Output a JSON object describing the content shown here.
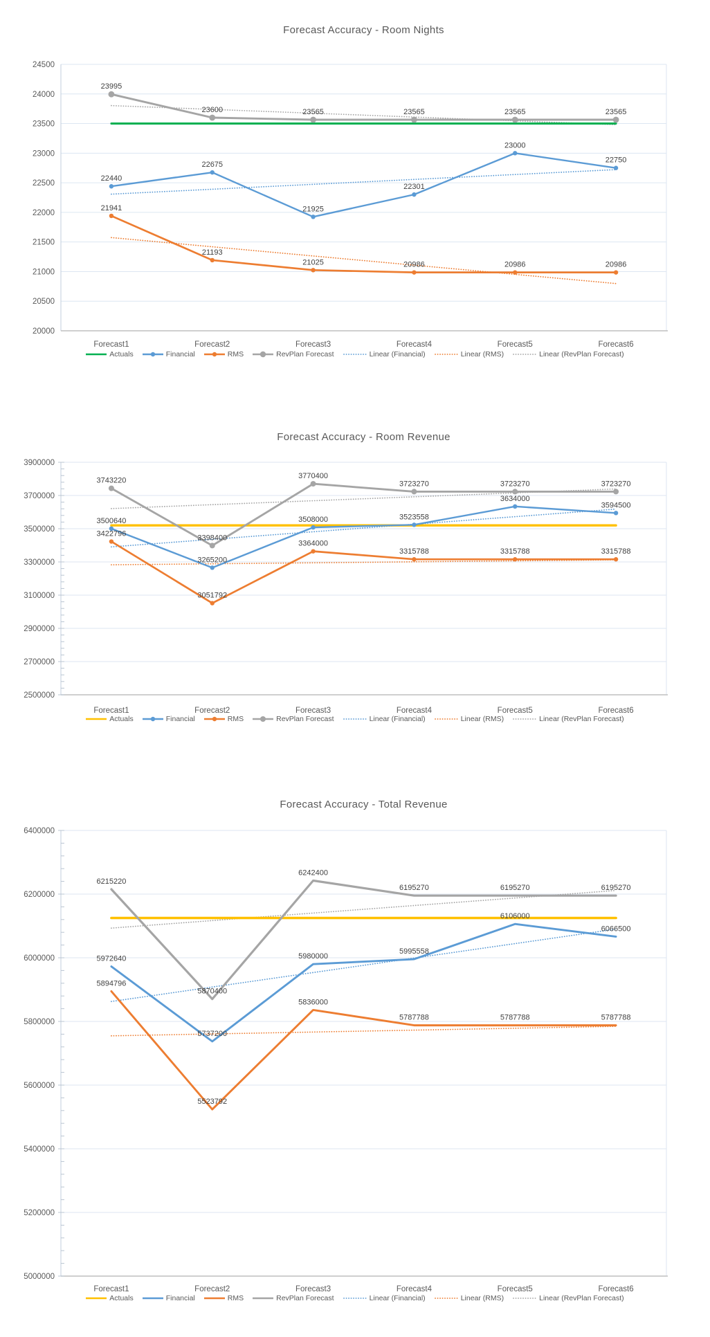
{
  "chart_data": [
    {
      "type": "line",
      "title": "Forecast Accuracy - Room Nights",
      "categories": [
        "Forecast1",
        "Forecast2",
        "Forecast3",
        "Forecast4",
        "Forecast5",
        "Forecast6"
      ],
      "y_axis": {
        "min": 20000,
        "max": 24500,
        "step": 500,
        "minor_ticks": false,
        "tick_labels": [
          "20000",
          "20500",
          "21000",
          "21500",
          "22000",
          "22500",
          "23000",
          "23500",
          "24000",
          "24500"
        ]
      },
      "grid": true,
      "legend_position": "bottom",
      "series": [
        {
          "name": "Actuals",
          "color": "#00B050",
          "marker": "none",
          "data_labels": false,
          "values": [
            23500,
            23500,
            23500,
            23500,
            23500,
            23500
          ]
        },
        {
          "name": "Financial",
          "color": "#5B9BD5",
          "marker": "dot",
          "data_labels": true,
          "values": [
            22440,
            22675,
            21925,
            22301,
            23000,
            22750
          ]
        },
        {
          "name": "RMS",
          "color": "#ED7D31",
          "marker": "dot",
          "data_labels": true,
          "values": [
            21941,
            21193,
            21025,
            20986,
            20986,
            20986
          ]
        },
        {
          "name": "RevPlan Forecast",
          "color": "#A5A5A5",
          "marker": "circle",
          "data_labels": true,
          "values": [
            23995,
            23600,
            23565,
            23565,
            23565,
            23565
          ]
        }
      ],
      "trendlines": [
        {
          "name": "Linear (Financial)",
          "source": "Financial",
          "color": "#5B9BD5"
        },
        {
          "name": "Linear (RMS)",
          "source": "RMS",
          "color": "#ED7D31"
        },
        {
          "name": "Linear (RevPlan Forecast)",
          "source": "RevPlan Forecast",
          "color": "#A5A5A5"
        }
      ]
    },
    {
      "type": "line",
      "title": "Forecast Accuracy - Room Revenue",
      "categories": [
        "Forecast1",
        "Forecast2",
        "Forecast3",
        "Forecast4",
        "Forecast5",
        "Forecast6"
      ],
      "y_axis": {
        "min": 2500000,
        "max": 3900000,
        "step": 200000,
        "minor_ticks": true,
        "tick_labels": [
          "2500000",
          "2700000",
          "2900000",
          "3100000",
          "3300000",
          "3500000",
          "3700000",
          "3900000"
        ]
      },
      "grid": true,
      "legend_position": "bottom",
      "series": [
        {
          "name": "Actuals",
          "color": "#FFC000",
          "marker": "none",
          "data_labels": false,
          "values": [
            3520000,
            3520000,
            3520000,
            3520000,
            3520000,
            3520000
          ]
        },
        {
          "name": "Financial",
          "color": "#5B9BD5",
          "marker": "dot",
          "data_labels": true,
          "values": [
            3500640,
            3265200,
            3508000,
            3523558,
            3634000,
            3594500
          ]
        },
        {
          "name": "RMS",
          "color": "#ED7D31",
          "marker": "dot",
          "data_labels": true,
          "values": [
            3422796,
            3051792,
            3364000,
            3315788,
            3315788,
            3315788
          ]
        },
        {
          "name": "RevPlan Forecast",
          "color": "#A5A5A5",
          "marker": "circle",
          "data_labels": true,
          "values": [
            3743220,
            3398400,
            3770400,
            3723270,
            3723270,
            3723270
          ]
        }
      ],
      "trendlines": [
        {
          "name": "Linear (Financial)",
          "source": "Financial",
          "color": "#5B9BD5"
        },
        {
          "name": "Linear (RMS)",
          "source": "RMS",
          "color": "#ED7D31"
        },
        {
          "name": "Linear (RevPlan Forecast)",
          "source": "RevPlan Forecast",
          "color": "#A5A5A5"
        }
      ]
    },
    {
      "type": "line",
      "title": "Forecast Accuracy - Total Revenue",
      "categories": [
        "Forecast1",
        "Forecast2",
        "Forecast3",
        "Forecast4",
        "Forecast5",
        "Forecast6"
      ],
      "y_axis": {
        "min": 5000000,
        "max": 6400000,
        "step": 200000,
        "minor_ticks": true,
        "tick_labels": [
          "5000000",
          "5200000",
          "5400000",
          "5600000",
          "5800000",
          "6000000",
          "6200000",
          "6400000"
        ]
      },
      "grid": true,
      "legend_position": "bottom",
      "series": [
        {
          "name": "Actuals",
          "color": "#FFC000",
          "marker": "none",
          "data_labels": false,
          "values": [
            6125000,
            6125000,
            6125000,
            6125000,
            6125000,
            6125000
          ]
        },
        {
          "name": "Financial",
          "color": "#5B9BD5",
          "marker": "none",
          "data_labels": true,
          "values": [
            5972640,
            5737200,
            5980000,
            5995558,
            6106000,
            6066500
          ]
        },
        {
          "name": "RMS",
          "color": "#ED7D31",
          "marker": "none",
          "data_labels": true,
          "values": [
            5894796,
            5523792,
            5836000,
            5787788,
            5787788,
            5787788
          ]
        },
        {
          "name": "RevPlan Forecast",
          "color": "#A5A5A5",
          "marker": "none",
          "data_labels": true,
          "values": [
            6215220,
            5870400,
            6242400,
            6195270,
            6195270,
            6195270
          ]
        }
      ],
      "trendlines": [
        {
          "name": "Linear (Financial)",
          "source": "Financial",
          "color": "#5B9BD5"
        },
        {
          "name": "Linear (RMS)",
          "source": "RMS",
          "color": "#ED7D31"
        },
        {
          "name": "Linear (RevPlan Forecast)",
          "source": "RevPlan Forecast",
          "color": "#A5A5A5"
        }
      ]
    }
  ]
}
